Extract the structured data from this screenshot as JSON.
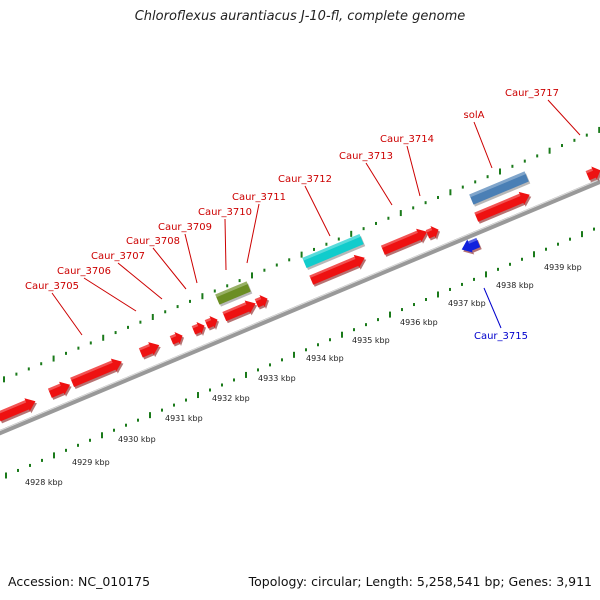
{
  "title": "Chloroflexus aurantiacus J-10-fl, complete genome",
  "footer": {
    "accession": "Accession: NC_010175",
    "summary": "Topology: circular; Length: 5,258,541 bp; Genes: 3,911"
  },
  "colors": {
    "forward_gene": "#ee1111",
    "reverse_gene": "#1122dd",
    "label_forward": "#cc0000",
    "label_reverse": "#0000cc",
    "tick": "#1a7a1a",
    "backbone": "#999999",
    "feature_cyan": "#11cccc",
    "feature_olive": "#6b8e23",
    "feature_steel": "#4a7fb5"
  },
  "scale": {
    "unit": "kbp",
    "labels": [
      {
        "kbp": 4928,
        "text": "4928 kbp"
      },
      {
        "kbp": 4929,
        "text": "4929 kbp"
      },
      {
        "kbp": 4930,
        "text": "4930 kbp"
      },
      {
        "kbp": 4931,
        "text": "4931 kbp"
      },
      {
        "kbp": 4932,
        "text": "4932 kbp"
      },
      {
        "kbp": 4933,
        "text": "4933 kbp"
      },
      {
        "kbp": 4934,
        "text": "4934 kbp"
      },
      {
        "kbp": 4935,
        "text": "4935 kbp"
      },
      {
        "kbp": 4936,
        "text": "4936 kbp"
      },
      {
        "kbp": 4937,
        "text": "4937 kbp"
      },
      {
        "kbp": 4938,
        "text": "4938 kbp"
      },
      {
        "kbp": 4939,
        "text": "4939 kbp"
      }
    ]
  },
  "labels_forward": [
    {
      "text": "Caur_3705"
    },
    {
      "text": "Caur_3706"
    },
    {
      "text": "Caur_3707"
    },
    {
      "text": "Caur_3708"
    },
    {
      "text": "Caur_3709"
    },
    {
      "text": "Caur_3710"
    },
    {
      "text": "Caur_3711"
    },
    {
      "text": "Caur_3712"
    },
    {
      "text": "Caur_3713"
    },
    {
      "text": "Caur_3714"
    },
    {
      "text": "solA"
    },
    {
      "text": "Caur_3717"
    }
  ],
  "labels_reverse": [
    {
      "text": "Caur_3715"
    }
  ]
}
